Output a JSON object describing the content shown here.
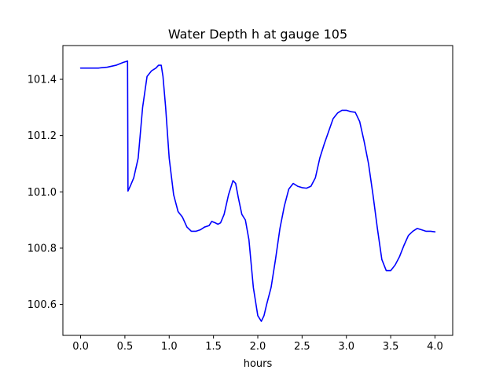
{
  "chart_data": {
    "type": "line",
    "title": "Water Depth h at gauge 105",
    "xlabel": "hours",
    "ylabel": "",
    "xlim": [
      -0.2,
      4.2
    ],
    "ylim": [
      100.49,
      101.52
    ],
    "xticks": [
      0.0,
      0.5,
      1.0,
      1.5,
      2.0,
      2.5,
      3.0,
      3.5,
      4.0
    ],
    "xtick_labels": [
      "0.0",
      "0.5",
      "1.0",
      "1.5",
      "2.0",
      "2.5",
      "3.0",
      "3.5",
      "4.0"
    ],
    "yticks": [
      100.6,
      100.8,
      101.0,
      101.2,
      101.4
    ],
    "ytick_labels": [
      "100.6",
      "100.8",
      "101.0",
      "101.2",
      "101.4"
    ],
    "grid": false,
    "series": [
      {
        "color": "#0000ff",
        "x": [
          0.0,
          0.1,
          0.2,
          0.3,
          0.4,
          0.48,
          0.53,
          0.535,
          0.56,
          0.6,
          0.65,
          0.7,
          0.75,
          0.8,
          0.85,
          0.88,
          0.91,
          0.93,
          0.96,
          1.0,
          1.05,
          1.1,
          1.15,
          1.2,
          1.25,
          1.3,
          1.35,
          1.4,
          1.45,
          1.48,
          1.52,
          1.55,
          1.58,
          1.62,
          1.67,
          1.72,
          1.75,
          1.78,
          1.82,
          1.86,
          1.9,
          1.95,
          2.0,
          2.04,
          2.07,
          2.1,
          2.15,
          2.2,
          2.25,
          2.3,
          2.35,
          2.4,
          2.45,
          2.5,
          2.55,
          2.6,
          2.65,
          2.7,
          2.75,
          2.8,
          2.85,
          2.9,
          2.95,
          3.0,
          3.05,
          3.1,
          3.15,
          3.2,
          3.25,
          3.3,
          3.35,
          3.4,
          3.45,
          3.5,
          3.55,
          3.6,
          3.65,
          3.7,
          3.75,
          3.8,
          3.85,
          3.9,
          3.95,
          4.0
        ],
        "y": [
          101.44,
          101.44,
          101.44,
          101.443,
          101.45,
          101.46,
          101.465,
          101.003,
          101.02,
          101.05,
          101.12,
          101.3,
          101.41,
          101.43,
          101.44,
          101.45,
          101.45,
          101.41,
          101.3,
          101.12,
          100.99,
          100.93,
          100.91,
          100.875,
          100.86,
          100.86,
          100.865,
          100.875,
          100.88,
          100.895,
          100.89,
          100.885,
          100.89,
          100.92,
          100.99,
          101.04,
          101.03,
          100.98,
          100.92,
          100.9,
          100.83,
          100.66,
          100.56,
          100.54,
          100.56,
          100.6,
          100.66,
          100.76,
          100.87,
          100.95,
          101.01,
          101.03,
          101.02,
          101.015,
          101.013,
          101.02,
          101.05,
          101.12,
          101.17,
          101.215,
          101.26,
          101.28,
          101.29,
          101.29,
          101.285,
          101.283,
          101.25,
          101.18,
          101.1,
          100.99,
          100.87,
          100.76,
          100.72,
          100.72,
          100.74,
          100.77,
          100.81,
          100.845,
          100.86,
          100.87,
          100.865,
          100.86,
          100.86,
          100.858
        ]
      }
    ]
  }
}
